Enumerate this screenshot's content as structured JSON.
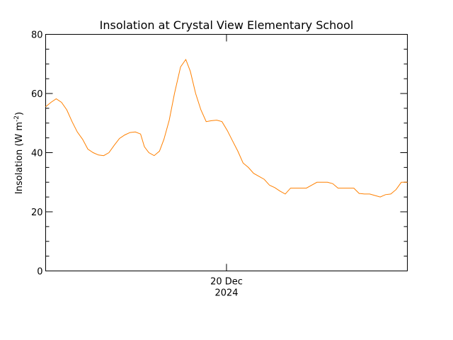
{
  "chart_data": {
    "type": "line",
    "title": "Insolation at Crystal View Elementary School",
    "ylabel": "Insolation (W m",
    "ylabel_sup": "-2",
    "ylabel_end": ")",
    "ylim": [
      0,
      80
    ],
    "yticks": [
      0,
      20,
      40,
      60,
      80
    ],
    "yticks_minor": [
      5,
      10,
      15,
      25,
      30,
      35,
      45,
      50,
      55,
      65,
      70,
      75
    ],
    "xlim": [
      0,
      24
    ],
    "xticks": [
      {
        "x": 12,
        "line1": "20 Dec",
        "line2": "2024"
      }
    ],
    "series": [
      {
        "color": "#ff8000",
        "points": [
          [
            0.0,
            55.5
          ],
          [
            0.35,
            57.0
          ],
          [
            0.7,
            58.2
          ],
          [
            1.05,
            57.0
          ],
          [
            1.4,
            54.5
          ],
          [
            1.75,
            50.5
          ],
          [
            2.1,
            47.0
          ],
          [
            2.45,
            44.5
          ],
          [
            2.8,
            41.2
          ],
          [
            3.15,
            40.0
          ],
          [
            3.5,
            39.2
          ],
          [
            3.85,
            39.0
          ],
          [
            4.2,
            40.0
          ],
          [
            4.55,
            42.5
          ],
          [
            4.9,
            44.8
          ],
          [
            5.25,
            46.0
          ],
          [
            5.6,
            46.8
          ],
          [
            5.95,
            47.0
          ],
          [
            6.3,
            46.3
          ],
          [
            6.55,
            42.0
          ],
          [
            6.85,
            40.0
          ],
          [
            7.2,
            39.0
          ],
          [
            7.55,
            40.5
          ],
          [
            7.85,
            44.5
          ],
          [
            8.2,
            51.0
          ],
          [
            8.55,
            60.0
          ],
          [
            8.95,
            69.0
          ],
          [
            9.3,
            71.5
          ],
          [
            9.6,
            67.5
          ],
          [
            9.95,
            60.0
          ],
          [
            10.3,
            54.5
          ],
          [
            10.65,
            50.5
          ],
          [
            11.0,
            50.8
          ],
          [
            11.35,
            51.0
          ],
          [
            11.7,
            50.5
          ],
          [
            12.05,
            47.5
          ],
          [
            12.4,
            44.0
          ],
          [
            12.75,
            40.5
          ],
          [
            13.1,
            36.5
          ],
          [
            13.45,
            35.0
          ],
          [
            13.8,
            33.0
          ],
          [
            14.15,
            32.0
          ],
          [
            14.5,
            31.0
          ],
          [
            14.85,
            29.0
          ],
          [
            15.2,
            28.2
          ],
          [
            15.55,
            27.0
          ],
          [
            15.9,
            26.0
          ],
          [
            16.25,
            28.0
          ],
          [
            16.6,
            28.0
          ],
          [
            16.95,
            28.0
          ],
          [
            17.3,
            28.0
          ],
          [
            17.65,
            29.0
          ],
          [
            18.0,
            30.0
          ],
          [
            18.35,
            30.0
          ],
          [
            18.7,
            30.0
          ],
          [
            19.05,
            29.5
          ],
          [
            19.4,
            28.0
          ],
          [
            19.75,
            28.0
          ],
          [
            20.1,
            28.0
          ],
          [
            20.45,
            28.0
          ],
          [
            20.8,
            26.2
          ],
          [
            21.15,
            26.0
          ],
          [
            21.5,
            26.0
          ],
          [
            21.85,
            25.5
          ],
          [
            22.2,
            25.0
          ],
          [
            22.55,
            25.8
          ],
          [
            22.9,
            26.0
          ],
          [
            23.25,
            27.5
          ],
          [
            23.6,
            30.0
          ],
          [
            24.0,
            30.0
          ]
        ]
      }
    ]
  }
}
